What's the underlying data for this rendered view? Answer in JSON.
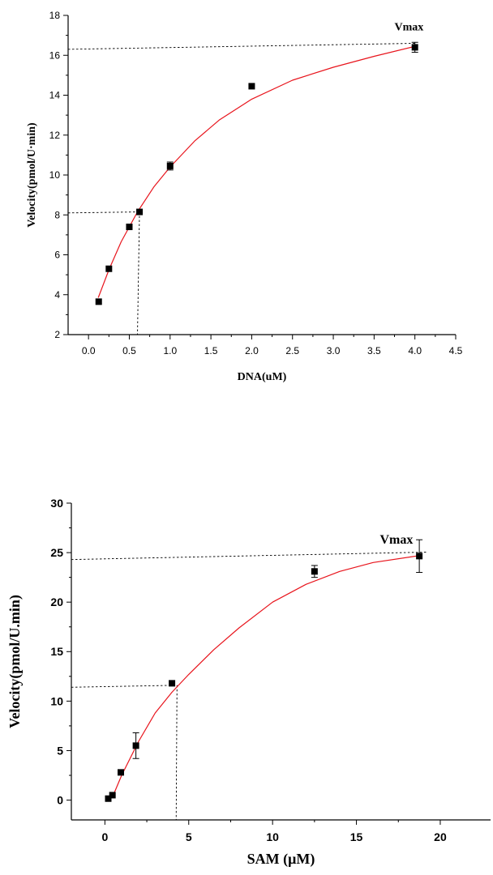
{
  "chart_data": [
    {
      "type": "scatter",
      "xlabel": "DNA(uM)",
      "ylabel": "Velocity(pmol/U·min)",
      "xlim": [
        -0.25,
        4.5
      ],
      "ylim": [
        2,
        18
      ],
      "xticks": [
        "0.0",
        "0.5",
        "1.0",
        "1.5",
        "2.0",
        "2.5",
        "3.0",
        "3.5",
        "4.0",
        "4.5"
      ],
      "yticks": [
        "2",
        "4",
        "6",
        "8",
        "10",
        "12",
        "14",
        "16",
        "18"
      ],
      "grid": false,
      "points": [
        {
          "x": 0.125,
          "y": 3.65
        },
        {
          "x": 0.25,
          "y": 5.3
        },
        {
          "x": 0.5,
          "y": 7.4
        },
        {
          "x": 0.625,
          "y": 8.15
        },
        {
          "x": 1.0,
          "y": 10.45,
          "err": 0.2
        },
        {
          "x": 2.0,
          "y": 14.45
        },
        {
          "x": 4.0,
          "y": 16.4,
          "err": 0.25
        }
      ],
      "fit_curve": {
        "color": "#e8141c",
        "x": [
          0.12,
          0.25,
          0.4,
          0.6,
          0.8,
          1.0,
          1.3,
          1.6,
          2.0,
          2.5,
          3.0,
          3.5,
          4.0
        ],
        "y": [
          3.85,
          5.25,
          6.65,
          8.15,
          9.4,
          10.4,
          11.7,
          12.75,
          13.8,
          14.75,
          15.4,
          15.95,
          16.45
        ]
      },
      "annotations": [
        {
          "text": "Vmax",
          "x": 3.75,
          "y": 17.25
        }
      ],
      "guide_lines": [
        {
          "from": [
            -0.25,
            16.3
          ],
          "to": [
            4.0,
            16.6
          ]
        },
        {
          "from": [
            -0.25,
            8.1
          ],
          "to": [
            0.625,
            8.15
          ]
        },
        {
          "from": [
            0.625,
            8.15
          ],
          "to": [
            0.6,
            2.0
          ]
        }
      ]
    },
    {
      "type": "scatter",
      "xlabel": "SAM (μM)",
      "ylabel": "Velocity(pmol/U.min)",
      "xlim": [
        -2,
        23
      ],
      "ylim": [
        -2,
        30
      ],
      "xticks": [
        "0",
        "5",
        "10",
        "15",
        "20"
      ],
      "yticks": [
        "0",
        "5",
        "10",
        "15",
        "20",
        "25",
        "30"
      ],
      "grid": false,
      "points": [
        {
          "x": 0.2,
          "y": 0.15
        },
        {
          "x": 0.45,
          "y": 0.5
        },
        {
          "x": 0.95,
          "y": 2.8
        },
        {
          "x": 1.85,
          "y": 5.5,
          "err": 1.3
        },
        {
          "x": 4.0,
          "y": 11.8
        },
        {
          "x": 12.5,
          "y": 23.1,
          "err": 0.6
        },
        {
          "x": 18.75,
          "y": 24.65,
          "err": 1.65
        }
      ],
      "fit_curve": {
        "color": "#e8141c",
        "x": [
          0.45,
          1.0,
          2.0,
          3.0,
          4.0,
          5.0,
          6.5,
          8.0,
          10.0,
          12.0,
          14.0,
          16.0,
          18.75
        ],
        "y": [
          0.3,
          2.5,
          5.9,
          8.8,
          10.9,
          12.7,
          15.2,
          17.4,
          20.0,
          21.8,
          23.1,
          24.0,
          24.7
        ]
      },
      "annotations": [
        {
          "text": "Vmax",
          "x": 16.4,
          "y": 25.9
        }
      ],
      "guide_lines": [
        {
          "from": [
            -2,
            24.3
          ],
          "to": [
            19.2,
            25.05
          ]
        },
        {
          "from": [
            -2,
            11.4
          ],
          "to": [
            4.3,
            11.6
          ]
        },
        {
          "from": [
            4.3,
            11.6
          ],
          "to": [
            4.25,
            -2
          ]
        }
      ]
    }
  ]
}
